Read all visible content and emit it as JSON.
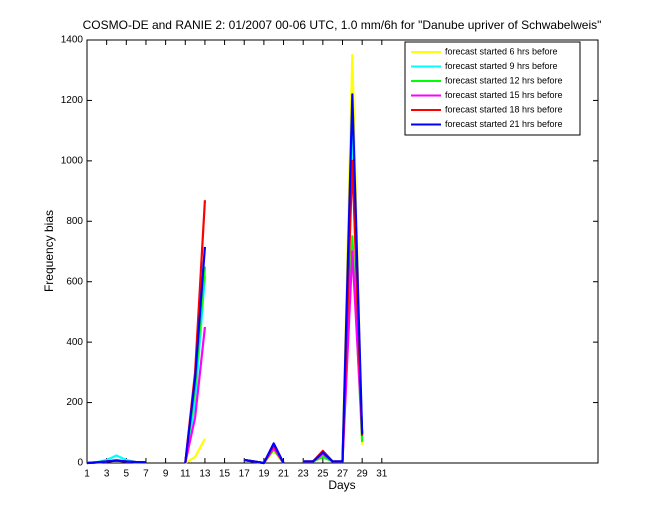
{
  "chart_data": {
    "type": "line",
    "title": "COSMO-DE and RANIE 2: 01/2007 00-06 UTC, 1.0 mm/6h for \"Danube upriver of Schwabelweis\"",
    "x_label": "Days",
    "y_label": "Frequency bias",
    "x": [
      1,
      2,
      3,
      4,
      5,
      6,
      7,
      8,
      9,
      10,
      11,
      12,
      13,
      14,
      15,
      16,
      17,
      18,
      19,
      20,
      21,
      22,
      23,
      24,
      25,
      26,
      27,
      28,
      29
    ],
    "series": [
      {
        "name": "forecast started 6 hrs before",
        "color": "#ffff00",
        "values": [
          0,
          2,
          5,
          8,
          5,
          3,
          2,
          null,
          null,
          null,
          0,
          20,
          80,
          null,
          null,
          null,
          10,
          5,
          0,
          40,
          0,
          null,
          5,
          5,
          25,
          5,
          5,
          1350,
          60
        ]
      },
      {
        "name": "forecast started 9 hrs before",
        "color": "#00ffff",
        "values": [
          0,
          3,
          10,
          25,
          10,
          3,
          2,
          null,
          null,
          null,
          0,
          200,
          620,
          null,
          null,
          null,
          10,
          5,
          0,
          55,
          0,
          null,
          5,
          5,
          30,
          5,
          5,
          1100,
          90
        ]
      },
      {
        "name": "forecast started 12 hrs before",
        "color": "#00ff00",
        "values": [
          0,
          2,
          5,
          10,
          5,
          3,
          2,
          null,
          null,
          null,
          0,
          250,
          650,
          null,
          null,
          null,
          10,
          5,
          0,
          45,
          0,
          null,
          5,
          5,
          20,
          5,
          5,
          750,
          70
        ]
      },
      {
        "name": "forecast started 15 hrs before",
        "color": "#ff00ff",
        "values": [
          0,
          2,
          5,
          8,
          5,
          3,
          2,
          null,
          null,
          null,
          0,
          150,
          450,
          null,
          null,
          null,
          10,
          5,
          0,
          50,
          0,
          null,
          5,
          5,
          30,
          5,
          5,
          700,
          100
        ]
      },
      {
        "name": "forecast started 18 hrs before",
        "color": "#ff0000",
        "values": [
          0,
          2,
          5,
          8,
          5,
          3,
          2,
          null,
          null,
          null,
          0,
          300,
          870,
          null,
          null,
          null,
          10,
          5,
          0,
          60,
          0,
          null,
          5,
          5,
          40,
          5,
          5,
          1000,
          90
        ]
      },
      {
        "name": "forecast started 21 hrs before",
        "color": "#0000ff",
        "values": [
          0,
          2,
          5,
          8,
          5,
          3,
          2,
          null,
          null,
          null,
          0,
          280,
          715,
          null,
          null,
          null,
          10,
          5,
          0,
          65,
          0,
          null,
          5,
          5,
          35,
          5,
          5,
          1220,
          95
        ]
      }
    ],
    "xlim": [
      1,
      53
    ],
    "xticks": [
      1,
      3,
      5,
      7,
      9,
      11,
      13,
      15,
      17,
      19,
      21,
      23,
      25,
      27,
      29,
      31
    ],
    "ylim": [
      0,
      1400
    ],
    "yticks": [
      0,
      200,
      400,
      600,
      800,
      1000,
      1200,
      1400
    ],
    "legend": "upper right"
  }
}
